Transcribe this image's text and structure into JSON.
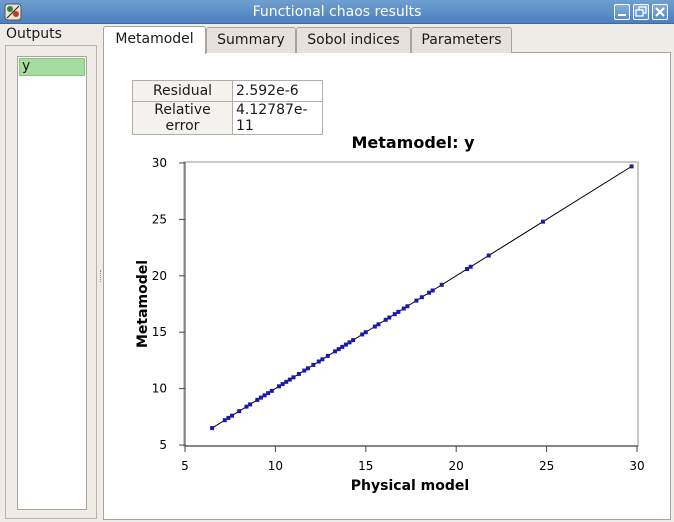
{
  "window": {
    "title": "Functional chaos results",
    "icons": {
      "app": "app-icon",
      "minimize": "minimize-icon",
      "maximize": "maximize-icon",
      "close": "close-icon"
    }
  },
  "outputs": {
    "label": "Outputs",
    "items": [
      "y"
    ],
    "selected": "y"
  },
  "tabs": [
    {
      "label": "Metamodel",
      "active": true
    },
    {
      "label": "Summary",
      "active": false
    },
    {
      "label": "Sobol indices",
      "active": false
    },
    {
      "label": "Parameters",
      "active": false
    }
  ],
  "metrics": [
    {
      "label": "Residual",
      "value": "2.592e-6"
    },
    {
      "label": "Relative error",
      "value": "4.12787e-11"
    }
  ],
  "chart_data": {
    "type": "scatter",
    "title": "Metamodel: y",
    "xlabel": "Physical model",
    "ylabel": "Metamodel",
    "xlim": [
      5,
      30
    ],
    "ylim": [
      5,
      30
    ],
    "xticks": [
      5,
      10,
      15,
      20,
      25,
      30
    ],
    "yticks": [
      5,
      10,
      15,
      20,
      25,
      30
    ],
    "grid": false,
    "diagonal_line": true,
    "colors": {
      "points": "#1a1aa8",
      "line": "#000000"
    },
    "points": [
      [
        6.5,
        6.5
      ],
      [
        7.2,
        7.2
      ],
      [
        7.4,
        7.4
      ],
      [
        7.6,
        7.6
      ],
      [
        8.0,
        8.0
      ],
      [
        8.4,
        8.4
      ],
      [
        8.6,
        8.6
      ],
      [
        9.0,
        9.0
      ],
      [
        9.2,
        9.2
      ],
      [
        9.4,
        9.4
      ],
      [
        9.6,
        9.6
      ],
      [
        9.8,
        9.8
      ],
      [
        10.2,
        10.2
      ],
      [
        10.4,
        10.4
      ],
      [
        10.6,
        10.6
      ],
      [
        10.8,
        10.8
      ],
      [
        11.0,
        11.0
      ],
      [
        11.3,
        11.3
      ],
      [
        11.6,
        11.6
      ],
      [
        11.8,
        11.8
      ],
      [
        12.1,
        12.1
      ],
      [
        12.4,
        12.4
      ],
      [
        12.6,
        12.6
      ],
      [
        12.9,
        12.9
      ],
      [
        13.3,
        13.3
      ],
      [
        13.5,
        13.5
      ],
      [
        13.7,
        13.7
      ],
      [
        13.9,
        13.9
      ],
      [
        14.1,
        14.1
      ],
      [
        14.3,
        14.3
      ],
      [
        14.8,
        14.8
      ],
      [
        15.0,
        15.0
      ],
      [
        15.5,
        15.5
      ],
      [
        15.7,
        15.7
      ],
      [
        16.1,
        16.1
      ],
      [
        16.3,
        16.3
      ],
      [
        16.6,
        16.6
      ],
      [
        16.8,
        16.8
      ],
      [
        17.1,
        17.1
      ],
      [
        17.3,
        17.3
      ],
      [
        17.8,
        17.8
      ],
      [
        18.1,
        18.1
      ],
      [
        18.5,
        18.5
      ],
      [
        18.7,
        18.7
      ],
      [
        19.2,
        19.2
      ],
      [
        20.6,
        20.6
      ],
      [
        20.8,
        20.8
      ],
      [
        21.8,
        21.8
      ],
      [
        24.8,
        24.8
      ],
      [
        29.7,
        29.7
      ]
    ]
  }
}
